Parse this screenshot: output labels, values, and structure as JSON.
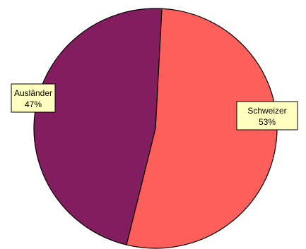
{
  "chart_data": {
    "type": "pie",
    "categories": [
      "Schweizer",
      "Ausländer"
    ],
    "values": [
      53,
      47
    ],
    "data_labels": [
      "53%",
      "47%"
    ],
    "colors": [
      "#FF5F5A",
      "#821E5F"
    ],
    "label_background": "#FFFFC0",
    "legend": "none"
  }
}
